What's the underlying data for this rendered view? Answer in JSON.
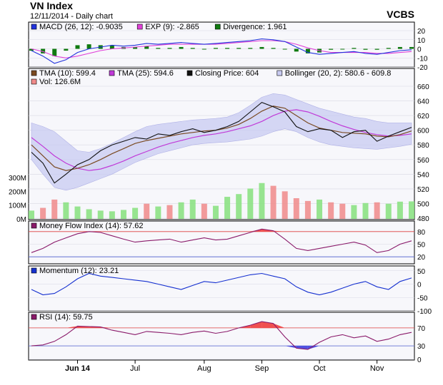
{
  "header": {
    "title": "VN Index",
    "subtitle": "12/11/2014 - Daily chart",
    "brand": "VCBS"
  },
  "colors": {
    "panel_bg": "#f7f7fb",
    "band_fill": "#c9cbf2",
    "price_line": "#111111",
    "tma10": "#7a4a22",
    "tma25": "#c03ad8",
    "macd": "#2233dd",
    "exp": "#e040d8",
    "divergence": "#107a10",
    "vol_green": "#86e07c",
    "vol_red": "#f08a8a",
    "mfi": "#8a1a6a",
    "momentum": "#1530d0",
    "rsi": "#8a1a6a",
    "overbought_fill": "#f05050",
    "oversold_fill": "#5050e0",
    "ref_red": "#e04040",
    "ref_blue": "#5060d0"
  },
  "chart_data": [
    {
      "type": "line",
      "panel": "macd",
      "legend": [
        {
          "label": "MACD (26, 12): -0.9035",
          "color": "#2233dd"
        },
        {
          "label": "EXP (9): -2.865",
          "color": "#e040d8"
        },
        {
          "label": "Divergence: 1.961",
          "color": "#107a10"
        }
      ],
      "yticks": [
        "20",
        "10",
        "0",
        "-10",
        "-20"
      ],
      "ylim": [
        -20,
        20
      ],
      "series": [
        {
          "name": "MACD (26, 12)",
          "values": [
            -2,
            -8,
            -16,
            -12,
            -4,
            0,
            2,
            4,
            3,
            4,
            6,
            5,
            6,
            7,
            6,
            5,
            6,
            7,
            8,
            9,
            11,
            10,
            8,
            2,
            -4,
            -6,
            -5,
            -4,
            -3,
            -5,
            -6,
            -4,
            -2,
            -1
          ]
        },
        {
          "name": "EXP (9)",
          "values": [
            0,
            -3,
            -8,
            -10,
            -8,
            -5,
            -2,
            0,
            1,
            2,
            3,
            4,
            5,
            5,
            5,
            5,
            5,
            6,
            7,
            8,
            9,
            9,
            8,
            5,
            1,
            -2,
            -4,
            -4,
            -4,
            -4,
            -5,
            -5,
            -4,
            -3
          ]
        }
      ]
    },
    {
      "type": "line",
      "panel": "price",
      "legend": [
        {
          "label": "TMA (10): 599.4",
          "color": "#7a4a22"
        },
        {
          "label": "TMA (25): 594.6",
          "color": "#c03ad8"
        },
        {
          "label": "Closing Price: 604",
          "color": "#111111"
        },
        {
          "label": "Bollinger (20, 2): 580.6 - 609.8",
          "color": "#c9cbf2"
        },
        {
          "label": "Vol: 126.6M",
          "color": "#f08a8a"
        }
      ],
      "yticks": [
        "660",
        "640",
        "620",
        "600",
        "580",
        "560",
        "540",
        "520",
        "500",
        "480"
      ],
      "vol_ticks": [
        "300M",
        "200M",
        "100M",
        "0M"
      ],
      "ylim": [
        480,
        660
      ],
      "series": [
        {
          "name": "Closing Price",
          "values": [
            570,
            555,
            528,
            540,
            553,
            560,
            572,
            580,
            585,
            590,
            588,
            595,
            593,
            598,
            602,
            597,
            600,
            605,
            612,
            625,
            638,
            632,
            625,
            605,
            598,
            602,
            600,
            590,
            598,
            600,
            585,
            592,
            598,
            604
          ]
        },
        {
          "name": "TMA (10)",
          "values": [
            580,
            565,
            550,
            545,
            548,
            553,
            560,
            568,
            575,
            582,
            586,
            589,
            592,
            595,
            597,
            599,
            600,
            603,
            608,
            616,
            626,
            633,
            630,
            620,
            610,
            603,
            600,
            597,
            596,
            595,
            592,
            591,
            594,
            599
          ]
        },
        {
          "name": "TMA (25)",
          "values": [
            590,
            578,
            565,
            555,
            548,
            545,
            547,
            552,
            558,
            565,
            571,
            577,
            582,
            586,
            590,
            593,
            595,
            598,
            602,
            606,
            612,
            620,
            626,
            628,
            625,
            619,
            612,
            606,
            601,
            597,
            594,
            592,
            593,
            595
          ]
        },
        {
          "name": "Bollinger Upper",
          "values": [
            610,
            605,
            598,
            585,
            572,
            570,
            575,
            582,
            590,
            598,
            605,
            608,
            610,
            612,
            614,
            615,
            616,
            618,
            624,
            634,
            645,
            650,
            648,
            642,
            636,
            630,
            626,
            622,
            618,
            616,
            612,
            610,
            610,
            610
          ]
        },
        {
          "name": "Bollinger Lower",
          "values": [
            560,
            540,
            522,
            518,
            522,
            528,
            534,
            540,
            548,
            556,
            562,
            568,
            572,
            576,
            580,
            582,
            583,
            584,
            586,
            588,
            592,
            598,
            602,
            598,
            590,
            584,
            580,
            578,
            576,
            575,
            574,
            576,
            578,
            581
          ]
        }
      ],
      "volume": [
        60,
        80,
        140,
        120,
        90,
        70,
        60,
        55,
        65,
        80,
        110,
        90,
        100,
        120,
        140,
        110,
        95,
        160,
        180,
        220,
        260,
        240,
        200,
        150,
        130,
        140,
        120,
        110,
        100,
        115,
        120,
        110,
        125,
        127
      ]
    },
    {
      "type": "line",
      "panel": "mfi",
      "legend": [
        {
          "label": "Money Flow Index (14): 57.62",
          "color": "#8a1a6a"
        }
      ],
      "yticks": [
        "80",
        "50",
        "20"
      ],
      "ylim": [
        0,
        100
      ],
      "reference_lines": [
        80,
        20
      ],
      "series": [
        {
          "name": "Money Flow Index (14)",
          "values": [
            30,
            40,
            55,
            65,
            75,
            80,
            78,
            70,
            62,
            55,
            58,
            60,
            62,
            55,
            60,
            65,
            60,
            62,
            70,
            78,
            86,
            82,
            62,
            40,
            35,
            40,
            45,
            50,
            55,
            48,
            30,
            35,
            50,
            58
          ]
        }
      ]
    },
    {
      "type": "line",
      "panel": "momentum",
      "legend": [
        {
          "label": "Momentum (12): 23.21",
          "color": "#1530d0"
        }
      ],
      "yticks": [
        "50",
        "0",
        "-50",
        "-100"
      ],
      "ylim": [
        -100,
        60
      ],
      "series": [
        {
          "name": "Momentum (12)",
          "values": [
            -20,
            -40,
            -35,
            -10,
            20,
            40,
            30,
            25,
            20,
            15,
            10,
            0,
            -10,
            -20,
            -5,
            10,
            5,
            15,
            25,
            35,
            40,
            30,
            20,
            -10,
            -30,
            -40,
            -30,
            -15,
            0,
            10,
            -10,
            -20,
            10,
            23
          ]
        }
      ]
    },
    {
      "type": "line",
      "panel": "rsi",
      "legend": [
        {
          "label": "RSI (14): 59.75",
          "color": "#8a1a6a"
        }
      ],
      "yticks": [
        "70",
        "30",
        "0"
      ],
      "ylim": [
        0,
        100
      ],
      "reference_lines": [
        70,
        30
      ],
      "series": [
        {
          "name": "RSI (14)",
          "values": [
            30,
            32,
            40,
            55,
            74,
            73,
            72,
            65,
            60,
            55,
            62,
            60,
            58,
            55,
            60,
            63,
            58,
            62,
            70,
            76,
            84,
            80,
            50,
            25,
            22,
            38,
            50,
            55,
            48,
            52,
            40,
            45,
            55,
            60
          ]
        }
      ]
    }
  ],
  "xaxis": {
    "labels": [
      {
        "label": "Jun 14",
        "index": 4
      },
      {
        "label": "Jul",
        "index": 9
      },
      {
        "label": "Aug",
        "index": 15
      },
      {
        "label": "Sep",
        "index": 20
      },
      {
        "label": "Oct",
        "index": 25
      },
      {
        "label": "Nov",
        "index": 30
      }
    ]
  }
}
